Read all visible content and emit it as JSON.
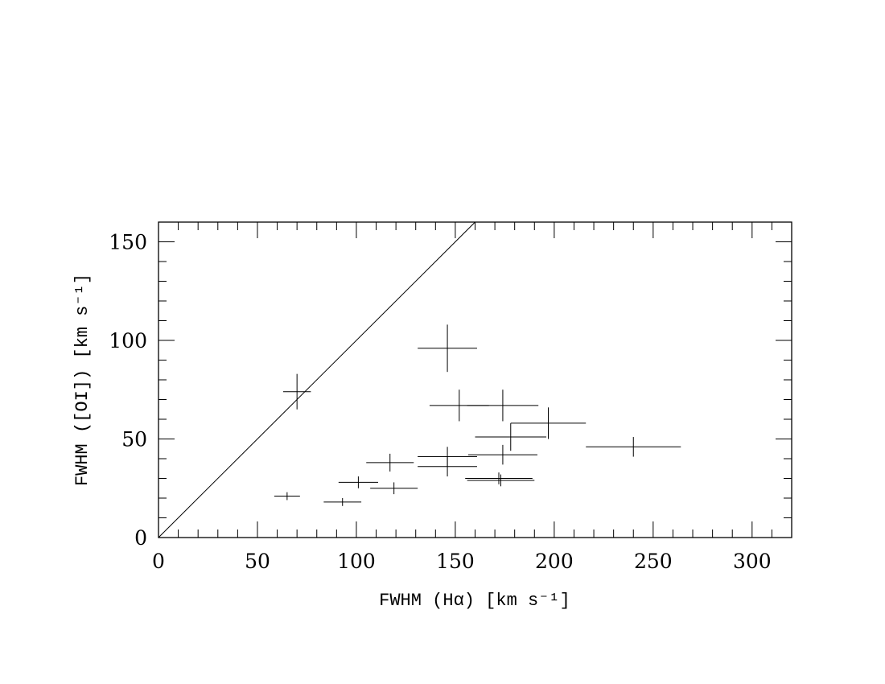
{
  "chart_data": {
    "type": "scatter",
    "xlabel": "FWHM (Hα) [km s⁻¹]",
    "ylabel": "FWHM ([OI]) [km s⁻¹]",
    "x": [
      65,
      70,
      93,
      101,
      117,
      119,
      146,
      146,
      146,
      152,
      174,
      197,
      178,
      174,
      172,
      173,
      240
    ],
    "values": [
      21,
      74,
      18,
      28,
      38,
      25,
      96,
      41,
      36,
      67,
      67,
      58,
      51,
      42,
      30,
      29,
      46
    ],
    "x_err": [
      6.5,
      7,
      9.5,
      10,
      12,
      12,
      15,
      15,
      15,
      15,
      18,
      19,
      18,
      17.5,
      17,
      17,
      24
    ],
    "y_err": [
      2,
      9,
      2,
      3,
      4.5,
      3,
      12,
      5,
      5,
      8,
      8,
      8,
      7,
      5,
      3,
      3,
      5
    ],
    "color": "#000000",
    "xlim": [
      0,
      320
    ],
    "ylim": [
      0,
      160
    ],
    "xticks": [
      0,
      50,
      100,
      150,
      200,
      250,
      300
    ],
    "yticks": [
      0,
      50,
      100,
      150
    ]
  }
}
